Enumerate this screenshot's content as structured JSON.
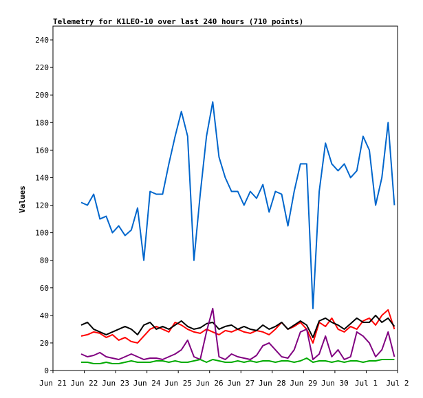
{
  "chart_data": {
    "type": "line",
    "title": "Telemetry for K1LEO-10 over last 240 hours (710 points)",
    "xlabel": "",
    "ylabel": "Values",
    "xlim": [
      "Jun 21",
      "Jul 2"
    ],
    "ylim": [
      0,
      250
    ],
    "x_tick_labels": [
      "Jun 21",
      "Jun 22",
      "Jun 23",
      "Jun 24",
      "Jun 25",
      "Jun 26",
      "Jun 27",
      "Jun 28",
      "Jun 29",
      "Jun 30",
      "Jul 1",
      "Jul 2"
    ],
    "y_ticks": [
      0,
      20,
      40,
      60,
      80,
      100,
      120,
      140,
      160,
      180,
      200,
      220,
      240
    ],
    "grid": false,
    "legend": "none",
    "x_days": [
      "Jun 21.9",
      "Jun 22.1",
      "Jun 22.3",
      "Jun 22.5",
      "Jun 22.7",
      "Jun 22.9",
      "Jun 23.1",
      "Jun 23.3",
      "Jun 23.5",
      "Jun 23.7",
      "Jun 23.9",
      "Jun 24.1",
      "Jun 24.3",
      "Jun 24.5",
      "Jun 24.7",
      "Jun 24.9",
      "Jun 25.1",
      "Jun 25.3",
      "Jun 25.5",
      "Jun 25.7",
      "Jun 25.9",
      "Jun 26.1",
      "Jun 26.3",
      "Jun 26.5",
      "Jun 26.7",
      "Jun 26.9",
      "Jun 27.1",
      "Jun 27.3",
      "Jun 27.5",
      "Jun 27.7",
      "Jun 27.9",
      "Jun 28.1",
      "Jun 28.3",
      "Jun 28.5",
      "Jun 28.7",
      "Jun 28.9",
      "Jun 29.1",
      "Jun 29.3",
      "Jun 29.5",
      "Jun 29.7",
      "Jun 29.9",
      "Jun 30.1",
      "Jun 30.3",
      "Jun 30.5",
      "Jun 30.7",
      "Jun 30.9",
      "Jul 1.1",
      "Jul 1.3",
      "Jul 1.5",
      "Jul 1.7",
      "Jul 1.9"
    ],
    "x": [
      0.9,
      1.1,
      1.3,
      1.5,
      1.7,
      1.9,
      2.1,
      2.3,
      2.5,
      2.7,
      2.9,
      3.1,
      3.3,
      3.5,
      3.7,
      3.9,
      4.1,
      4.3,
      4.5,
      4.7,
      4.9,
      5.1,
      5.3,
      5.5,
      5.7,
      5.9,
      6.1,
      6.3,
      6.5,
      6.7,
      6.9,
      7.1,
      7.3,
      7.5,
      7.7,
      7.9,
      8.1,
      8.3,
      8.5,
      8.7,
      8.9,
      9.1,
      9.3,
      9.5,
      9.7,
      9.9,
      10.1,
      10.3,
      10.5,
      10.7,
      10.9
    ],
    "series": [
      {
        "color": "#0066cc",
        "values": [
          122,
          120,
          128,
          110,
          112,
          100,
          105,
          98,
          102,
          118,
          80,
          130,
          128,
          128,
          150,
          170,
          188,
          170,
          80,
          128,
          170,
          195,
          155,
          140,
          130,
          130,
          120,
          130,
          125,
          135,
          115,
          130,
          128,
          105,
          130,
          150,
          150,
          45,
          130,
          165,
          150,
          145,
          150,
          140,
          145,
          170,
          160,
          120,
          140,
          180,
          120
        ]
      },
      {
        "color": "#ff0000",
        "values": [
          25,
          26,
          28,
          27,
          24,
          26,
          22,
          24,
          21,
          20,
          25,
          30,
          32,
          30,
          28,
          35,
          33,
          30,
          28,
          27,
          30,
          28,
          26,
          29,
          28,
          30,
          28,
          27,
          29,
          28,
          26,
          30,
          35,
          30,
          32,
          35,
          30,
          20,
          35,
          32,
          38,
          30,
          28,
          32,
          30,
          36,
          38,
          33,
          40,
          44,
          30
        ]
      },
      {
        "color": "#000000",
        "values": [
          33,
          35,
          30,
          28,
          26,
          28,
          30,
          32,
          30,
          26,
          33,
          35,
          30,
          32,
          30,
          33,
          36,
          32,
          30,
          31,
          34,
          35,
          30,
          32,
          33,
          30,
          32,
          30,
          29,
          33,
          30,
          32,
          35,
          30,
          33,
          36,
          33,
          24,
          36,
          38,
          35,
          33,
          30,
          34,
          38,
          35,
          35,
          40,
          35,
          38,
          32
        ]
      },
      {
        "color": "#800080",
        "values": [
          12,
          10,
          11,
          13,
          10,
          9,
          8,
          10,
          12,
          10,
          8,
          9,
          9,
          8,
          10,
          12,
          15,
          22,
          10,
          8,
          28,
          45,
          10,
          8,
          12,
          10,
          9,
          8,
          11,
          18,
          20,
          15,
          10,
          9,
          15,
          28,
          30,
          8,
          12,
          25,
          10,
          15,
          8,
          10,
          28,
          25,
          20,
          10,
          15,
          28,
          10
        ]
      },
      {
        "color": "#00aa00",
        "values": [
          6,
          6,
          5,
          5,
          6,
          5,
          5,
          6,
          7,
          6,
          6,
          6,
          7,
          7,
          6,
          7,
          6,
          6,
          7,
          8,
          6,
          8,
          7,
          6,
          6,
          7,
          6,
          7,
          6,
          7,
          7,
          6,
          7,
          7,
          6,
          7,
          9,
          6,
          7,
          7,
          6,
          7,
          6,
          7,
          7,
          6,
          7,
          7,
          8,
          8,
          8
        ]
      }
    ]
  }
}
